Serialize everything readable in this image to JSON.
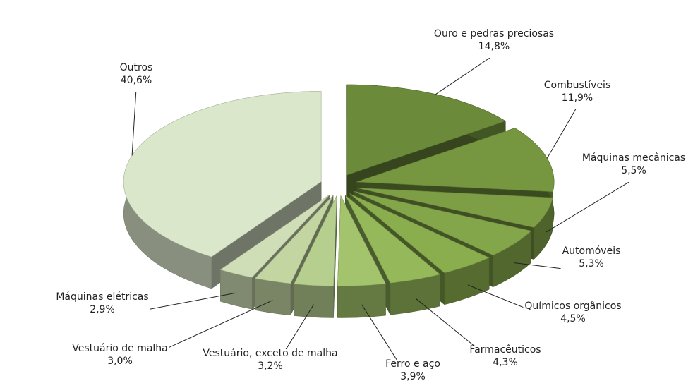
{
  "chart_data": {
    "type": "pie3d",
    "categories": [
      "Ouro e pedras preciosas",
      "Combustíveis",
      "Máquinas mecânicas",
      "Automóveis",
      "Químicos orgânicos",
      "Farmacêuticos",
      "Ferro e aço",
      "Vestuário, exceto de malha",
      "Vestuário de malha",
      "Máquinas elétricas",
      "Outros"
    ],
    "values": [
      14.8,
      11.9,
      5.5,
      5.3,
      4.5,
      4.3,
      3.9,
      3.2,
      3.0,
      2.9,
      40.6
    ],
    "value_labels": [
      "14,8%",
      "11,9%",
      "5,5%",
      "5,3%",
      "4,5%",
      "4,3%",
      "3,9%",
      "3,2%",
      "3,0%",
      "2,9%",
      "40,6%"
    ],
    "colors": [
      "#6b8a3a",
      "#76963f",
      "#7e9e45",
      "#84a64a",
      "#8aad4e",
      "#94b85a",
      "#a3c46c",
      "#b6cf8e",
      "#c3d6a2",
      "#cfdeb6",
      "#dbe7cb"
    ]
  }
}
